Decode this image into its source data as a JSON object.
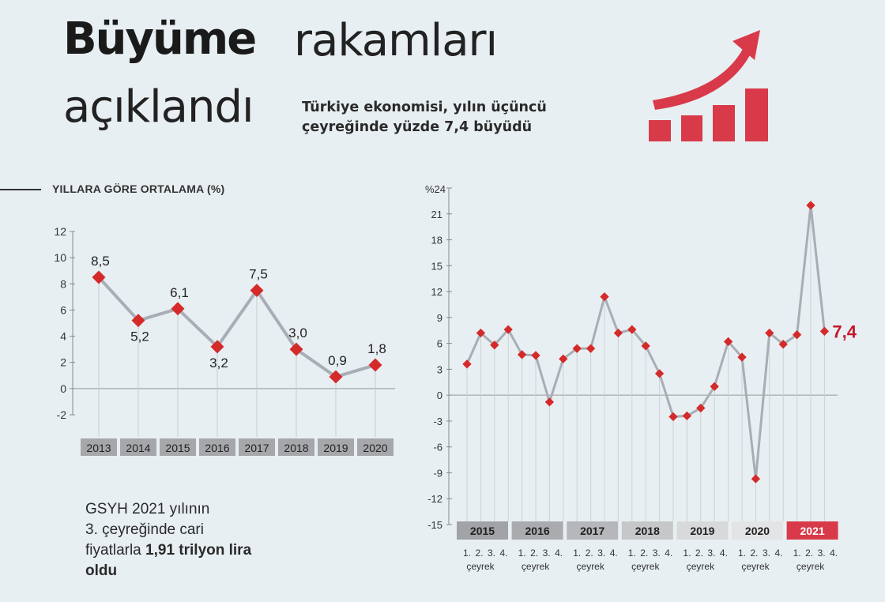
{
  "header": {
    "title_bold": "Büyüme",
    "title_light": "rakamları",
    "title_line2": "açıklandı",
    "subtitle_line1": "Türkiye ekonomisi, yılın üçüncü",
    "subtitle_line2": "çeyreğinde yüzde 7,4 büyüdü"
  },
  "icon": {
    "name": "growth-arrow-bars-icon",
    "color": "#d93a4a"
  },
  "note": {
    "line1": "GSYH 2021 yılının",
    "line2": "3. çeyreğinde cari",
    "line3_normal": "fiyatlarla ",
    "line3_bold": "1,91 trilyon lira",
    "line4_bold": "oldu"
  },
  "chart_data": [
    {
      "type": "line",
      "title": "YILLARA GÖRE ORTALAMA (%)",
      "categories": [
        "2013",
        "2014",
        "2015",
        "2016",
        "2017",
        "2018",
        "2019",
        "2020"
      ],
      "values": [
        8.5,
        5.2,
        6.1,
        3.2,
        7.5,
        3.0,
        0.9,
        1.8
      ],
      "value_labels": [
        "8,5",
        "5,2",
        "6,1",
        "3,2",
        "7,5",
        "3,0",
        "0,9",
        "1,8"
      ],
      "yticks": [
        "12",
        "10",
        "8",
        "6",
        "4",
        "2",
        "0",
        "-2"
      ],
      "ylim": [
        -2,
        12
      ],
      "line_color": "#a9adb6",
      "marker_color": "#d42a2a"
    },
    {
      "type": "line",
      "title": "",
      "y_unit_label": "%24",
      "yticks": [
        "21",
        "18",
        "15",
        "12",
        "9",
        "6",
        "3",
        "0",
        "-3",
        "-6",
        "-9",
        "-12",
        "-15"
      ],
      "ylim": [
        -15,
        24
      ],
      "years": [
        "2015",
        "2016",
        "2017",
        "2018",
        "2019",
        "2020",
        "2021"
      ],
      "year_colors": [
        "#a1a3a6",
        "#a9abae",
        "#b5b7ba",
        "#c5c7c9",
        "#d8d9db",
        "#e3e4e5",
        "#d93a4a"
      ],
      "quarter_labels": [
        "1.",
        "2.",
        "3.",
        "4."
      ],
      "quarter_word": "çeyrek",
      "values": [
        3.6,
        7.2,
        5.8,
        7.6,
        4.7,
        4.6,
        -0.8,
        4.2,
        5.4,
        5.4,
        11.4,
        7.2,
        7.6,
        5.7,
        2.5,
        -2.5,
        -2.4,
        -1.5,
        1.0,
        6.2,
        4.4,
        -9.7,
        7.2,
        5.9,
        7.0,
        22.0,
        7.4
      ],
      "highlight_label": "7,4",
      "line_color": "#a9adb6",
      "marker_color": "#d42a2a",
      "highlight_color": "#c4182a"
    }
  ]
}
